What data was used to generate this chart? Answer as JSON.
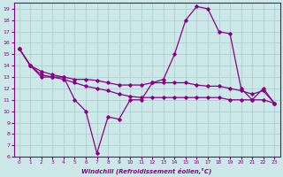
{
  "xlabel": "Windchill (Refroidissement éolien,°C)",
  "background_color": "#cce8e8",
  "grid_color": "#aacccc",
  "line_color": "#880088",
  "xlim": [
    -0.5,
    23.5
  ],
  "ylim": [
    6,
    19.5
  ],
  "xticks": [
    0,
    1,
    2,
    3,
    4,
    5,
    6,
    7,
    8,
    9,
    10,
    11,
    12,
    13,
    14,
    15,
    16,
    17,
    18,
    19,
    20,
    21,
    22,
    23
  ],
  "yticks": [
    6,
    7,
    8,
    9,
    10,
    11,
    12,
    13,
    14,
    15,
    16,
    17,
    18,
    19
  ],
  "line1_x": [
    0,
    1,
    2,
    3,
    4,
    5,
    6,
    7,
    8,
    9,
    10,
    11,
    12,
    13,
    14,
    15,
    16,
    17,
    18,
    19,
    20,
    21,
    22,
    23
  ],
  "line1_y": [
    15.5,
    14.0,
    13.0,
    13.0,
    13.0,
    11.0,
    10.0,
    6.3,
    9.5,
    9.3,
    11.0,
    11.0,
    12.5,
    12.8,
    15.0,
    18.0,
    19.2,
    19.0,
    17.0,
    16.8,
    12.0,
    11.0,
    12.0,
    10.7
  ],
  "line2_x": [
    0,
    1,
    2,
    3,
    4,
    5,
    6,
    7,
    8,
    9,
    10,
    11,
    12,
    13,
    14,
    15,
    16,
    17,
    18,
    19,
    20,
    21,
    22,
    23
  ],
  "line2_y": [
    15.5,
    14.0,
    13.2,
    13.0,
    12.8,
    12.5,
    12.2,
    12.0,
    11.8,
    11.5,
    11.3,
    11.2,
    11.2,
    11.2,
    11.2,
    11.2,
    11.2,
    11.2,
    11.2,
    11.0,
    11.0,
    11.0,
    11.0,
    10.7
  ],
  "line3_x": [
    0,
    1,
    2,
    3,
    4,
    5,
    6,
    7,
    8,
    9,
    10,
    11,
    12,
    13,
    14,
    15,
    16,
    17,
    18,
    19,
    20,
    21,
    22,
    23
  ],
  "line3_y": [
    15.5,
    14.0,
    13.5,
    13.2,
    13.0,
    12.8,
    12.8,
    12.7,
    12.5,
    12.3,
    12.3,
    12.3,
    12.5,
    12.5,
    12.5,
    12.5,
    12.3,
    12.2,
    12.2,
    12.0,
    11.8,
    11.5,
    11.8,
    10.7
  ]
}
